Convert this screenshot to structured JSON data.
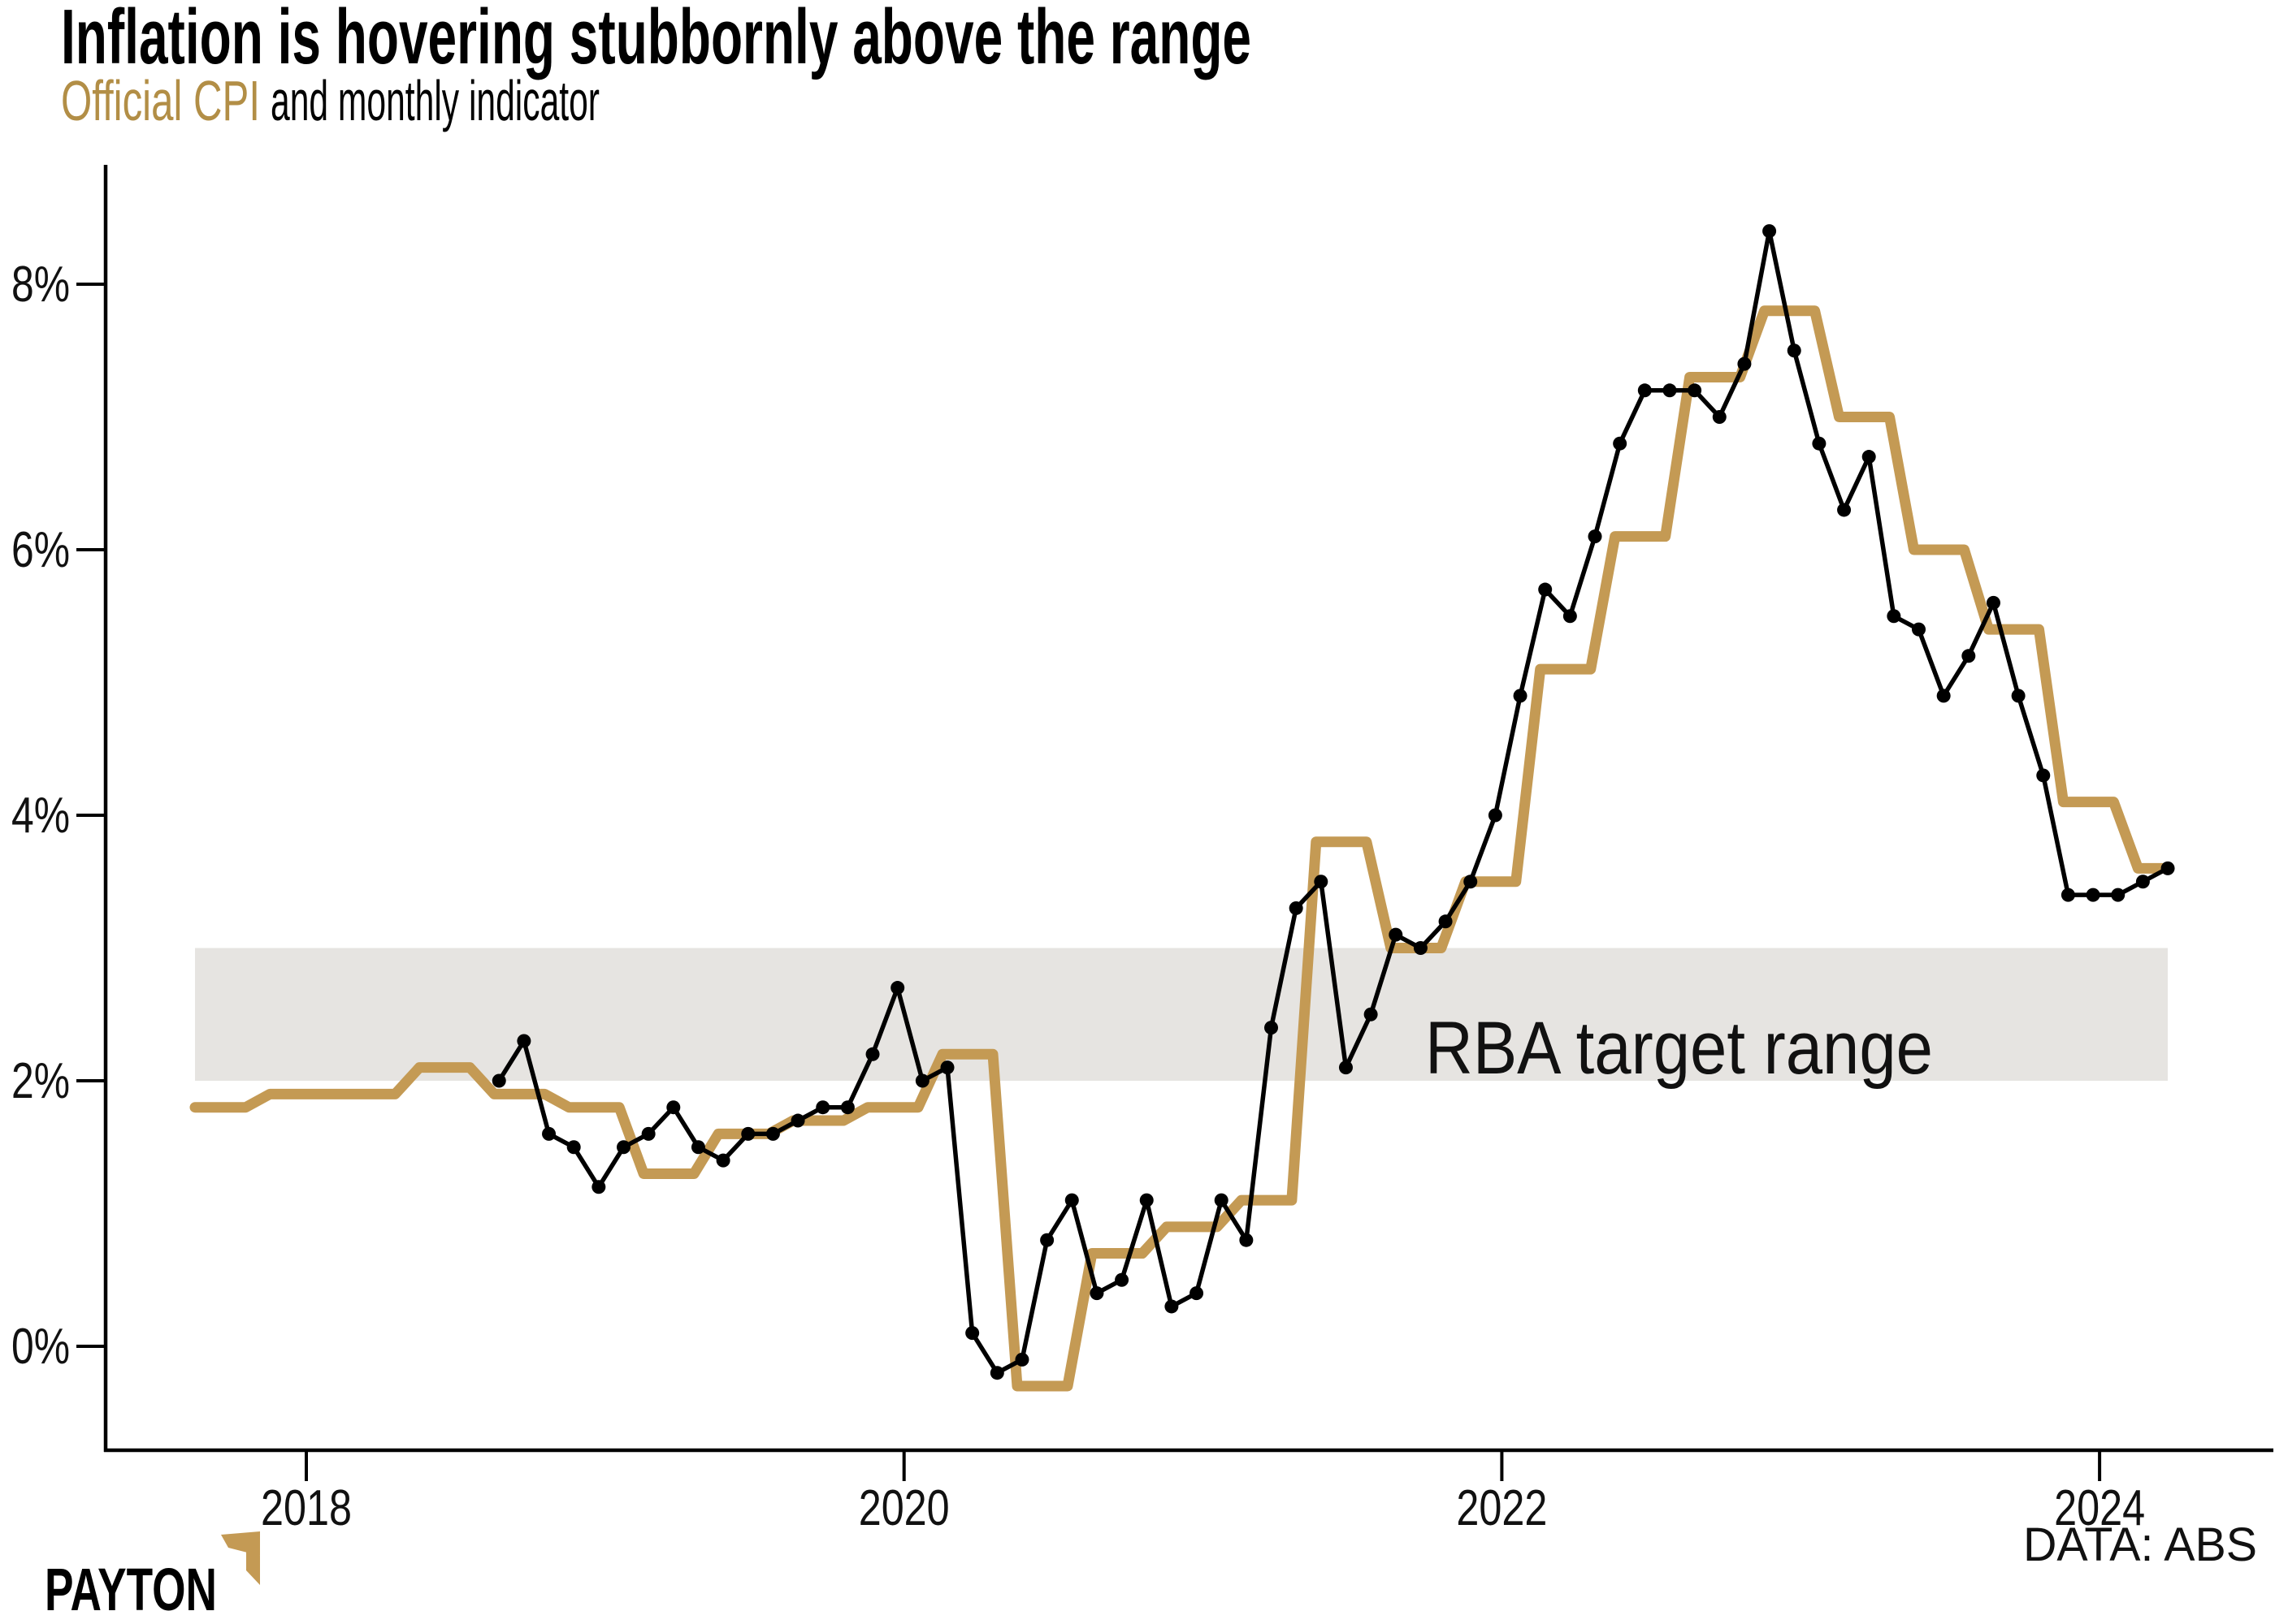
{
  "header": {
    "title": "Inflation is hovering stubbornly above the range",
    "subtitle_highlight": "Official CPI",
    "subtitle_rest": "and monthly indicator"
  },
  "annotations": {
    "band_label": "RBA target range"
  },
  "footer": {
    "logo_text": "PAYTON",
    "source": "DATA: ABS"
  },
  "colors": {
    "gold_line": "#C49A54",
    "gold_text": "#B28E46",
    "black_line": "#000000",
    "band_fill": "#E6E4E1",
    "axis": "#000000",
    "label_text": "#111111"
  },
  "chart_data": {
    "type": "line",
    "title": "Inflation is hovering stubbornly above the range",
    "subtitle": "Official CPI and monthly indicator",
    "xlabel": "",
    "ylabel": "",
    "grid": false,
    "legend_position": "none",
    "ylim": [
      -0.8,
      8.7
    ],
    "y_axis": {
      "ticks": [
        {
          "value": 0,
          "label": "0%"
        },
        {
          "value": 2,
          "label": "2%"
        },
        {
          "value": 4,
          "label": "4%"
        },
        {
          "value": 6,
          "label": "6%"
        },
        {
          "value": 8,
          "label": "8%"
        }
      ]
    },
    "x_axis": {
      "ticks": [
        {
          "year": 2018,
          "label": "2018"
        },
        {
          "year": 2020,
          "label": "2020"
        },
        {
          "year": 2022,
          "label": "2022"
        },
        {
          "year": 2024,
          "label": "2024"
        }
      ]
    },
    "band": {
      "label": "RBA target range",
      "from_pct": 2,
      "to_pct": 3
    },
    "series": [
      {
        "name": "Official CPI",
        "style": "step",
        "frequency": "quarterly",
        "points": [
          {
            "q": "2017Q3",
            "v": 1.8
          },
          {
            "q": "2017Q4",
            "v": 1.9
          },
          {
            "q": "2018Q1",
            "v": 1.9
          },
          {
            "q": "2018Q2",
            "v": 2.1
          },
          {
            "q": "2018Q3",
            "v": 1.9
          },
          {
            "q": "2018Q4",
            "v": 1.8
          },
          {
            "q": "2019Q1",
            "v": 1.3
          },
          {
            "q": "2019Q2",
            "v": 1.6
          },
          {
            "q": "2019Q3",
            "v": 1.7
          },
          {
            "q": "2019Q4",
            "v": 1.8
          },
          {
            "q": "2020Q1",
            "v": 2.2
          },
          {
            "q": "2020Q2",
            "v": -0.3
          },
          {
            "q": "2020Q3",
            "v": 0.7
          },
          {
            "q": "2020Q4",
            "v": 0.9
          },
          {
            "q": "2021Q1",
            "v": 1.1
          },
          {
            "q": "2021Q2",
            "v": 3.8
          },
          {
            "q": "2021Q3",
            "v": 3.0
          },
          {
            "q": "2021Q4",
            "v": 3.5
          },
          {
            "q": "2022Q1",
            "v": 5.1
          },
          {
            "q": "2022Q2",
            "v": 6.1
          },
          {
            "q": "2022Q3",
            "v": 7.3
          },
          {
            "q": "2022Q4",
            "v": 7.8
          },
          {
            "q": "2023Q1",
            "v": 7.0
          },
          {
            "q": "2023Q2",
            "v": 6.0
          },
          {
            "q": "2023Q3",
            "v": 5.4
          },
          {
            "q": "2023Q4",
            "v": 4.1
          },
          {
            "q": "2024Q1",
            "v": 3.6
          }
        ]
      },
      {
        "name": "Monthly indicator",
        "style": "line-points",
        "frequency": "monthly",
        "start_month": "2018-09",
        "values": [
          2.0,
          2.3,
          1.6,
          1.5,
          1.2,
          1.5,
          1.6,
          1.8,
          1.5,
          1.4,
          1.6,
          1.6,
          1.7,
          1.8,
          1.8,
          2.2,
          2.7,
          2.0,
          2.1,
          0.1,
          -0.2,
          -0.1,
          0.8,
          1.1,
          0.4,
          0.5,
          1.1,
          0.3,
          0.4,
          1.1,
          0.8,
          2.4,
          3.3,
          3.5,
          2.1,
          2.5,
          3.1,
          3.0,
          3.2,
          3.5,
          4.0,
          4.9,
          5.7,
          5.5,
          6.1,
          6.8,
          7.2,
          7.2,
          7.2,
          7.0,
          7.4,
          8.4,
          7.5,
          6.8,
          6.3,
          6.7,
          5.5,
          5.4,
          4.9,
          5.2,
          5.6,
          4.9,
          4.3,
          3.4,
          3.4,
          3.4,
          3.5,
          3.6
        ]
      }
    ]
  }
}
